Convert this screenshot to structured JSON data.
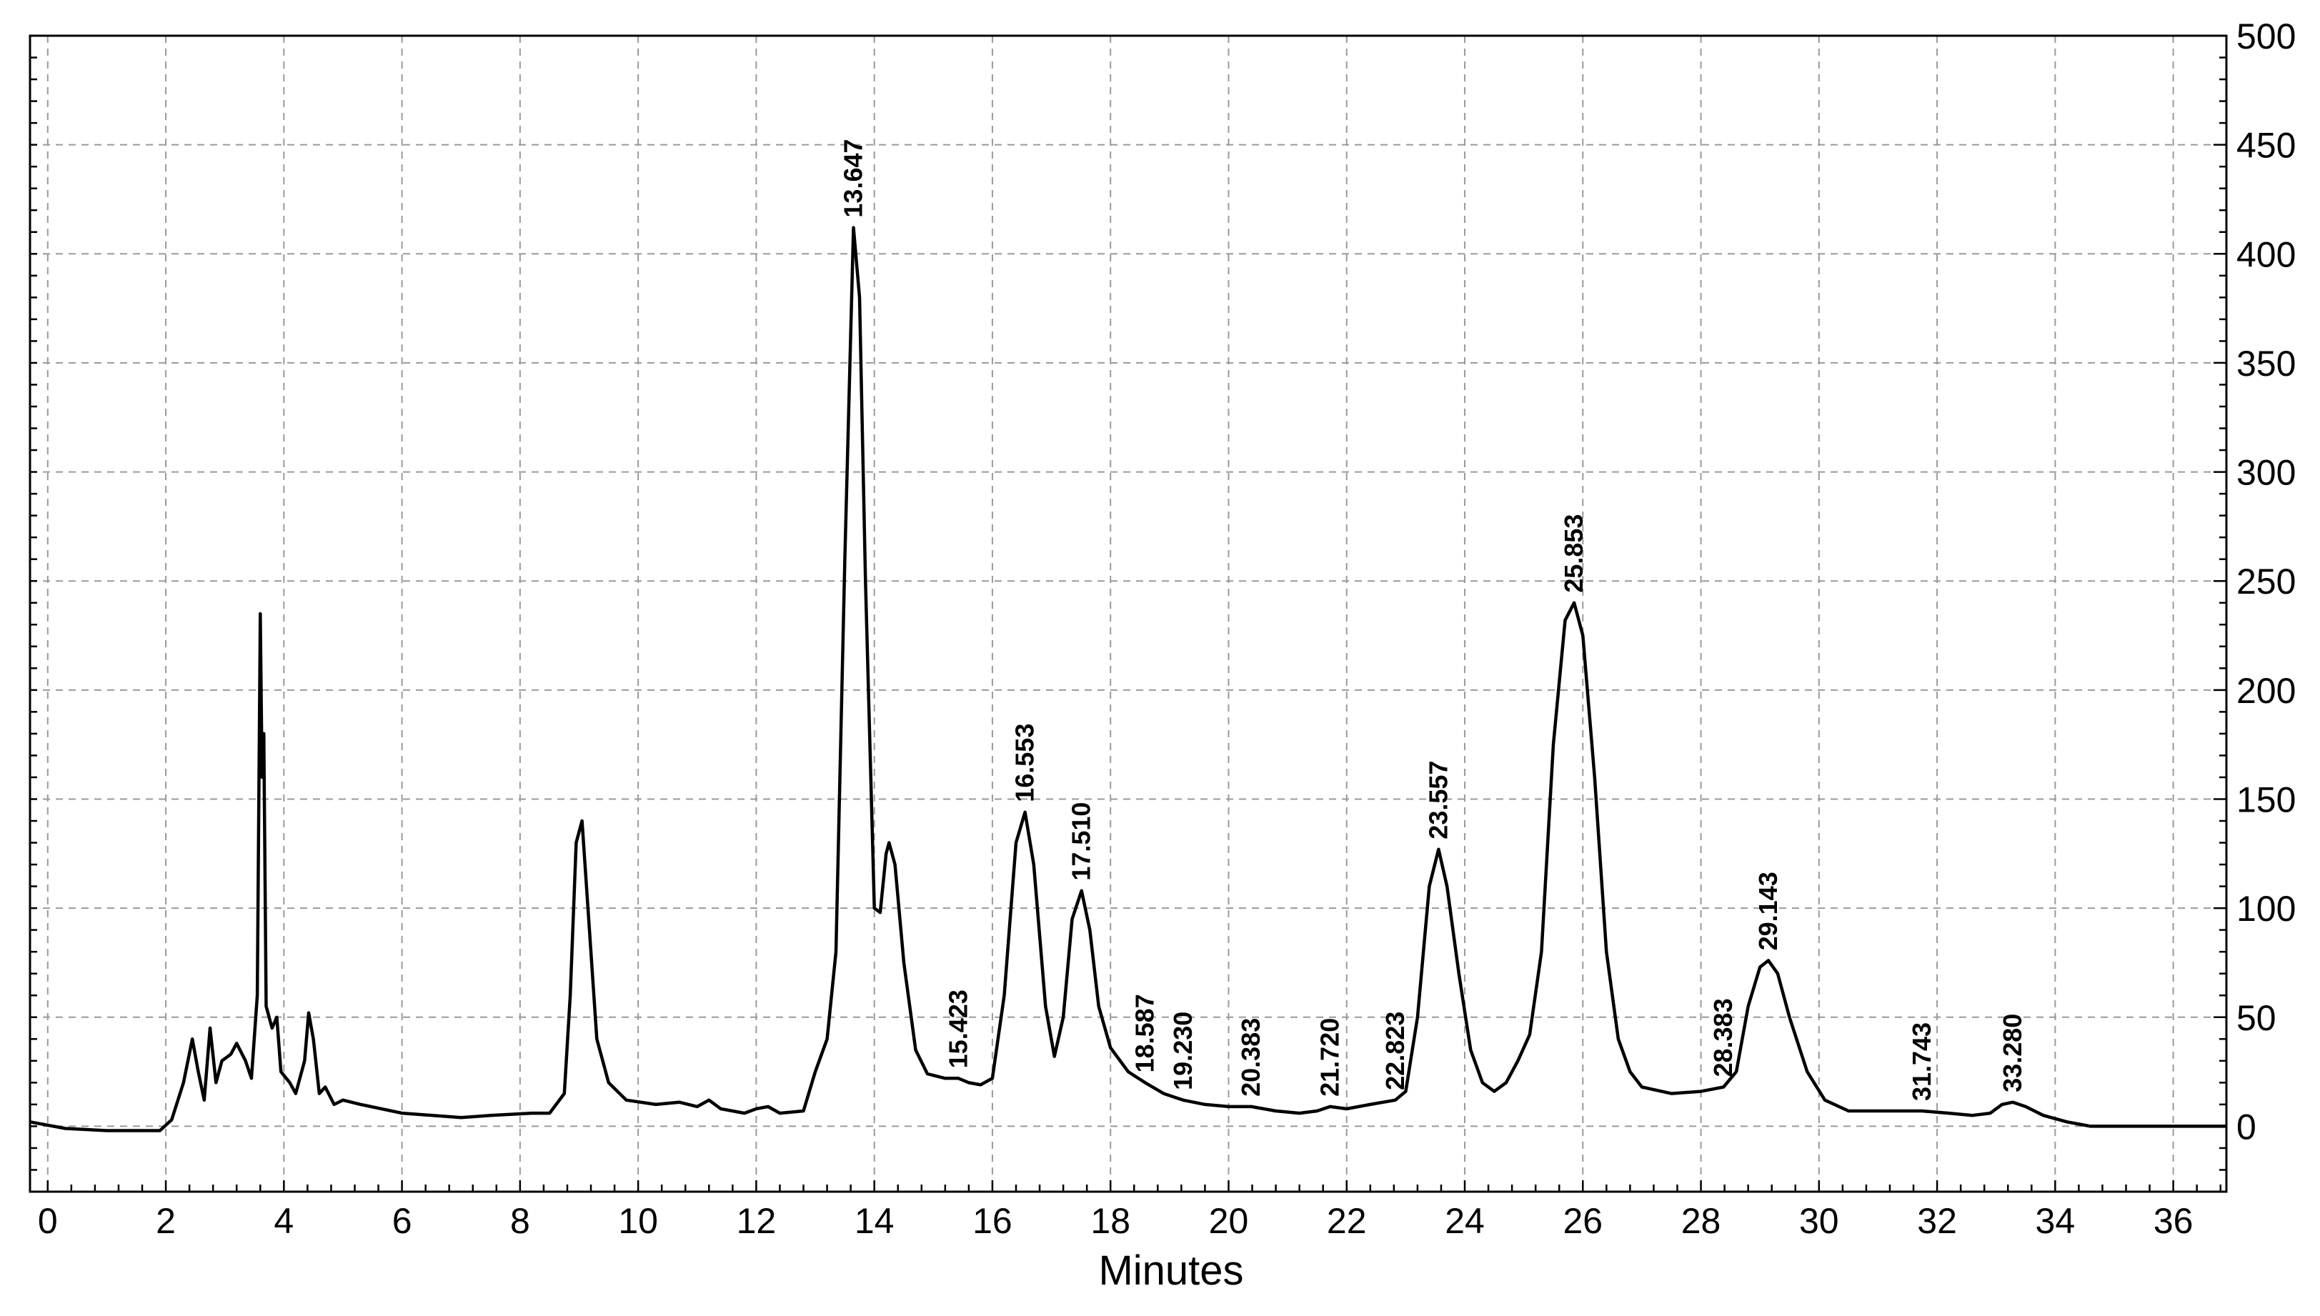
{
  "chart_data": {
    "type": "line",
    "title": "",
    "xlabel": "Minutes",
    "ylabel": "",
    "xlim": [
      -0.3,
      36.9
    ],
    "ylim": [
      -30,
      500
    ],
    "x_ticks": [
      "0",
      "2",
      "4",
      "6",
      "8",
      "10",
      "12",
      "14",
      "16",
      "18",
      "20",
      "22",
      "24",
      "26",
      "28",
      "30",
      "32",
      "34",
      "36"
    ],
    "y_ticks": [
      "0",
      "50",
      "100",
      "150",
      "200",
      "250",
      "300",
      "350",
      "400",
      "450",
      "500"
    ],
    "y_axis_side": "right",
    "grid": true,
    "series": [
      {
        "points": [
          [
            -0.3,
            2
          ],
          [
            0.3,
            -1
          ],
          [
            1,
            -2
          ],
          [
            1.9,
            -2
          ],
          [
            2.1,
            3
          ],
          [
            2.3,
            20
          ],
          [
            2.45,
            40
          ],
          [
            2.55,
            25
          ],
          [
            2.65,
            12
          ],
          [
            2.75,
            45
          ],
          [
            2.85,
            20
          ],
          [
            2.95,
            30
          ],
          [
            3.1,
            33
          ],
          [
            3.2,
            38
          ],
          [
            3.35,
            30
          ],
          [
            3.45,
            22
          ],
          [
            3.55,
            60
          ],
          [
            3.6,
            235
          ],
          [
            3.63,
            160
          ],
          [
            3.66,
            180
          ],
          [
            3.7,
            55
          ],
          [
            3.8,
            45
          ],
          [
            3.88,
            50
          ],
          [
            3.95,
            25
          ],
          [
            4.1,
            20
          ],
          [
            4.2,
            15
          ],
          [
            4.35,
            30
          ],
          [
            4.42,
            52
          ],
          [
            4.5,
            40
          ],
          [
            4.6,
            15
          ],
          [
            4.7,
            18
          ],
          [
            4.85,
            10
          ],
          [
            5,
            12
          ],
          [
            5.3,
            10
          ],
          [
            6,
            6
          ],
          [
            7,
            4
          ],
          [
            7.5,
            5
          ],
          [
            8.2,
            6
          ],
          [
            8.5,
            6
          ],
          [
            8.75,
            15
          ],
          [
            8.85,
            60
          ],
          [
            8.95,
            130
          ],
          [
            9.05,
            140
          ],
          [
            9.15,
            100
          ],
          [
            9.3,
            40
          ],
          [
            9.5,
            20
          ],
          [
            9.8,
            12
          ],
          [
            10.3,
            10
          ],
          [
            10.7,
            11
          ],
          [
            11.0,
            9
          ],
          [
            11.2,
            12
          ],
          [
            11.4,
            8
          ],
          [
            11.8,
            6
          ],
          [
            12.0,
            8
          ],
          [
            12.2,
            9
          ],
          [
            12.4,
            6
          ],
          [
            12.8,
            7
          ],
          [
            13.0,
            25
          ],
          [
            13.2,
            40
          ],
          [
            13.35,
            80
          ],
          [
            13.5,
            260
          ],
          [
            13.647,
            412
          ],
          [
            13.75,
            380
          ],
          [
            13.85,
            250
          ],
          [
            14.0,
            100
          ],
          [
            14.1,
            98
          ],
          [
            14.2,
            125
          ],
          [
            14.25,
            130
          ],
          [
            14.35,
            120
          ],
          [
            14.5,
            75
          ],
          [
            14.7,
            35
          ],
          [
            14.9,
            24
          ],
          [
            15.2,
            22
          ],
          [
            15.423,
            22
          ],
          [
            15.6,
            20
          ],
          [
            15.8,
            19
          ],
          [
            16.0,
            22
          ],
          [
            16.2,
            60
          ],
          [
            16.4,
            130
          ],
          [
            16.553,
            144
          ],
          [
            16.7,
            120
          ],
          [
            16.9,
            55
          ],
          [
            17.05,
            32
          ],
          [
            17.2,
            50
          ],
          [
            17.35,
            95
          ],
          [
            17.51,
            108
          ],
          [
            17.65,
            90
          ],
          [
            17.8,
            55
          ],
          [
            18.0,
            36
          ],
          [
            18.3,
            25
          ],
          [
            18.587,
            20
          ],
          [
            18.9,
            15
          ],
          [
            19.23,
            12
          ],
          [
            19.6,
            10
          ],
          [
            20.0,
            9
          ],
          [
            20.383,
            9
          ],
          [
            20.8,
            7
          ],
          [
            21.2,
            6
          ],
          [
            21.5,
            7
          ],
          [
            21.72,
            9
          ],
          [
            22.0,
            8
          ],
          [
            22.4,
            10
          ],
          [
            22.823,
            12
          ],
          [
            23.0,
            16
          ],
          [
            23.2,
            50
          ],
          [
            23.4,
            110
          ],
          [
            23.557,
            127
          ],
          [
            23.7,
            110
          ],
          [
            23.9,
            70
          ],
          [
            24.1,
            35
          ],
          [
            24.3,
            20
          ],
          [
            24.5,
            16
          ],
          [
            24.7,
            20
          ],
          [
            24.9,
            30
          ],
          [
            25.1,
            42
          ],
          [
            25.3,
            80
          ],
          [
            25.5,
            175
          ],
          [
            25.7,
            232
          ],
          [
            25.853,
            240
          ],
          [
            26.0,
            225
          ],
          [
            26.2,
            160
          ],
          [
            26.4,
            80
          ],
          [
            26.6,
            40
          ],
          [
            26.8,
            25
          ],
          [
            27.0,
            18
          ],
          [
            27.5,
            15
          ],
          [
            28.0,
            16
          ],
          [
            28.383,
            18
          ],
          [
            28.6,
            25
          ],
          [
            28.8,
            55
          ],
          [
            29.0,
            73
          ],
          [
            29.143,
            76
          ],
          [
            29.3,
            70
          ],
          [
            29.5,
            50
          ],
          [
            29.8,
            25
          ],
          [
            30.1,
            12
          ],
          [
            30.5,
            7
          ],
          [
            31.0,
            7
          ],
          [
            31.743,
            7
          ],
          [
            32.2,
            6
          ],
          [
            32.6,
            5
          ],
          [
            32.9,
            6
          ],
          [
            33.1,
            10
          ],
          [
            33.28,
            11
          ],
          [
            33.5,
            9
          ],
          [
            33.8,
            5
          ],
          [
            34.2,
            2
          ],
          [
            34.6,
            0
          ],
          [
            35.5,
            0
          ],
          [
            36.9,
            0
          ]
        ]
      }
    ],
    "peak_labels": [
      {
        "text": "13.647",
        "x": 13.647,
        "y": 412
      },
      {
        "text": "15.423",
        "x": 15.423,
        "y": 22
      },
      {
        "text": "16.553",
        "x": 16.553,
        "y": 144
      },
      {
        "text": "17.510",
        "x": 17.51,
        "y": 108
      },
      {
        "text": "18.587",
        "x": 18.587,
        "y": 20
      },
      {
        "text": "19.230",
        "x": 19.23,
        "y": 12
      },
      {
        "text": "20.383",
        "x": 20.383,
        "y": 9
      },
      {
        "text": "21.720",
        "x": 21.72,
        "y": 9
      },
      {
        "text": "22.823",
        "x": 22.823,
        "y": 12
      },
      {
        "text": "23.557",
        "x": 23.557,
        "y": 127
      },
      {
        "text": "25.853",
        "x": 25.853,
        "y": 240
      },
      {
        "text": "28.383",
        "x": 28.383,
        "y": 18
      },
      {
        "text": "29.143",
        "x": 29.143,
        "y": 76
      },
      {
        "text": "31.743",
        "x": 31.743,
        "y": 7
      },
      {
        "text": "33.280",
        "x": 33.28,
        "y": 11
      }
    ]
  }
}
